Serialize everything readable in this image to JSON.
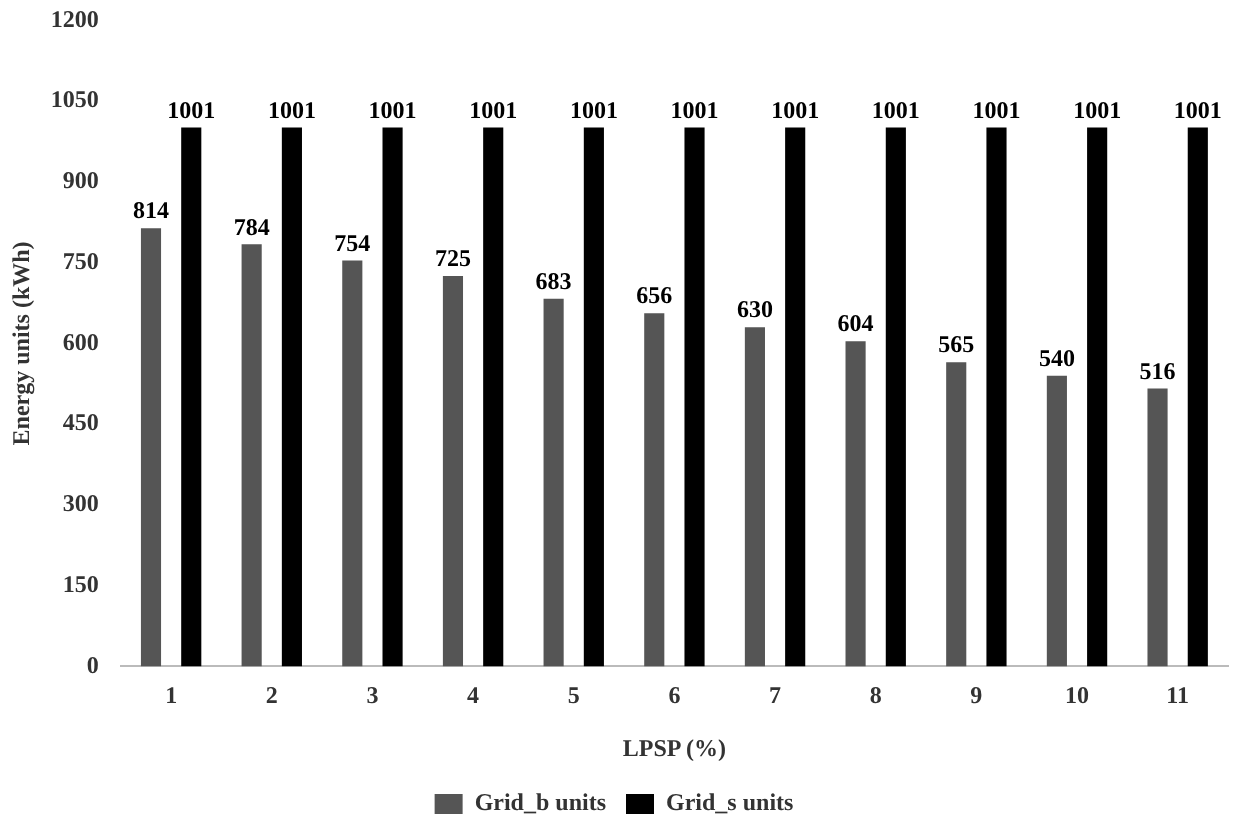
{
  "chart_data": {
    "type": "bar",
    "xlabel": "LPSP (%)",
    "ylabel": "Energy units (kWh)",
    "categories": [
      "1",
      "2",
      "3",
      "4",
      "5",
      "6",
      "7",
      "8",
      "9",
      "10",
      "11"
    ],
    "series": [
      {
        "name": "Grid_b units",
        "color": "#555555",
        "values": [
          814,
          784,
          754,
          725,
          683,
          656,
          630,
          604,
          565,
          540,
          516
        ]
      },
      {
        "name": "Grid_s units",
        "color": "#000000",
        "values": [
          1001,
          1001,
          1001,
          1001,
          1001,
          1001,
          1001,
          1001,
          1001,
          1001,
          1001
        ]
      }
    ],
    "ylim": [
      0,
      1200
    ],
    "yticks": [
      0,
      150,
      300,
      450,
      600,
      750,
      900,
      1050,
      1200
    ],
    "grid": false,
    "legend": "bottom",
    "data_labels": true
  }
}
